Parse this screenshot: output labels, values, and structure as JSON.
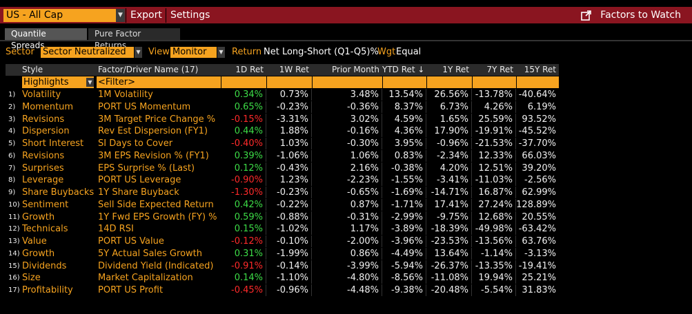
{
  "header": {
    "security": "US - All Cap",
    "export_label": "Export",
    "settings_label": "Settings",
    "factors_to_watch_label": "Factors to Watch"
  },
  "tabs": [
    {
      "label": "Quantile Spreads",
      "active": true
    },
    {
      "label": "Pure Factor Returns",
      "active": false
    }
  ],
  "filters": {
    "sector_label": "Sector",
    "sector_value": "Sector Neutralized",
    "view_label": "View",
    "view_value": "Monitor",
    "return_label": "Return",
    "return_value": "Net Long-Short (Q1-Q5)%",
    "wgt_label": "Wgt",
    "wgt_value": "Equal"
  },
  "table": {
    "headers": [
      "Style",
      "Factor/Driver Name (17)",
      "1D Ret",
      "1W Ret",
      "Prior Month",
      "YTD Ret ↓",
      "1Y Ret",
      "7Y Ret",
      "15Y Ret"
    ],
    "highlights_label": "Highlights",
    "filter_label": "<Filter>",
    "rows": [
      {
        "idx": "1)",
        "style": "Volatility",
        "name": "1M Volatility",
        "d1": "0.34%",
        "w1": "0.73%",
        "pm": "3.48%",
        "ytd": "13.54%",
        "y1": "26.56%",
        "y7": "-13.78%",
        "y15": "-40.64%"
      },
      {
        "idx": "2)",
        "style": "Momentum",
        "name": "PORT US Momentum",
        "d1": "0.65%",
        "w1": "-0.23%",
        "pm": "-0.36%",
        "ytd": "8.37%",
        "y1": "6.73%",
        "y7": "4.26%",
        "y15": "6.19%"
      },
      {
        "idx": "3)",
        "style": "Revisions",
        "name": "3M Target Price Change %",
        "d1": "-0.15%",
        "w1": "-3.31%",
        "pm": "3.02%",
        "ytd": "4.59%",
        "y1": "1.65%",
        "y7": "25.59%",
        "y15": "93.52%"
      },
      {
        "idx": "4)",
        "style": "Dispersion",
        "name": "Rev Est Dispersion (FY1)",
        "d1": "0.44%",
        "w1": "1.88%",
        "pm": "-0.16%",
        "ytd": "4.36%",
        "y1": "17.90%",
        "y7": "-19.91%",
        "y15": "-45.52%"
      },
      {
        "idx": "5)",
        "style": "Short Interest",
        "name": "SI Days to Cover",
        "d1": "-0.40%",
        "w1": "1.03%",
        "pm": "-0.30%",
        "ytd": "3.95%",
        "y1": "-0.96%",
        "y7": "-21.53%",
        "y15": "-37.70%"
      },
      {
        "idx": "6)",
        "style": "Revisions",
        "name": "3M EPS Revision % (FY1)",
        "d1": "0.39%",
        "w1": "-1.06%",
        "pm": "1.06%",
        "ytd": "0.83%",
        "y1": "-2.34%",
        "y7": "12.33%",
        "y15": "66.03%"
      },
      {
        "idx": "7)",
        "style": "Surprises",
        "name": "EPS Surprise % (Last)",
        "d1": "0.12%",
        "w1": "-0.43%",
        "pm": "2.16%",
        "ytd": "-0.38%",
        "y1": "4.20%",
        "y7": "12.51%",
        "y15": "39.20%"
      },
      {
        "idx": "8)",
        "style": "Leverage",
        "name": "PORT US Leverage",
        "d1": "-0.90%",
        "w1": "1.23%",
        "pm": "-2.23%",
        "ytd": "-1.55%",
        "y1": "-3.41%",
        "y7": "-11.03%",
        "y15": "-2.56%"
      },
      {
        "idx": "9)",
        "style": "Share Buybacks",
        "name": "1Y Share Buyback",
        "d1": "-1.30%",
        "w1": "-0.23%",
        "pm": "-0.65%",
        "ytd": "-1.69%",
        "y1": "-14.71%",
        "y7": "16.87%",
        "y15": "62.99%"
      },
      {
        "idx": "10)",
        "style": "Sentiment",
        "name": "Sell Side Expected Return",
        "d1": "0.42%",
        "w1": "-0.22%",
        "pm": "0.87%",
        "ytd": "-1.71%",
        "y1": "17.41%",
        "y7": "27.24%",
        "y15": "128.89%"
      },
      {
        "idx": "11)",
        "style": "Growth",
        "name": "1Y Fwd EPS Growth (FY) %",
        "d1": "0.59%",
        "w1": "-0.88%",
        "pm": "-0.31%",
        "ytd": "-2.99%",
        "y1": "-9.75%",
        "y7": "12.68%",
        "y15": "20.55%"
      },
      {
        "idx": "12)",
        "style": "Technicals",
        "name": "14D RSI",
        "d1": "0.15%",
        "w1": "-1.02%",
        "pm": "1.17%",
        "ytd": "-3.89%",
        "y1": "-18.39%",
        "y7": "-49.98%",
        "y15": "-63.42%"
      },
      {
        "idx": "13)",
        "style": "Value",
        "name": "PORT US Value",
        "d1": "-0.12%",
        "w1": "-0.10%",
        "pm": "-2.00%",
        "ytd": "-3.96%",
        "y1": "-23.53%",
        "y7": "-13.56%",
        "y15": "63.76%"
      },
      {
        "idx": "14)",
        "style": "Growth",
        "name": "5Y Actual Sales Growth",
        "d1": "0.31%",
        "w1": "-1.99%",
        "pm": "0.86%",
        "ytd": "-4.49%",
        "y1": "13.64%",
        "y7": "-1.14%",
        "y15": "-3.13%"
      },
      {
        "idx": "15)",
        "style": "Dividends",
        "name": "Dividend Yield (Indicated)",
        "d1": "-0.91%",
        "w1": "-0.14%",
        "pm": "-3.99%",
        "ytd": "-5.94%",
        "y1": "-26.37%",
        "y7": "-13.35%",
        "y15": "-19.41%"
      },
      {
        "idx": "16)",
        "style": "Size",
        "name": "Market Capitalization",
        "d1": "0.14%",
        "w1": "-1.10%",
        "pm": "-4.80%",
        "ytd": "-8.56%",
        "y1": "-11.08%",
        "y7": "19.94%",
        "y15": "25.21%"
      },
      {
        "idx": "17)",
        "style": "Profitability",
        "name": "PORT US Profit",
        "d1": "-0.45%",
        "w1": "-0.96%",
        "pm": "-4.48%",
        "ytd": "-9.38%",
        "y1": "-20.48%",
        "y7": "-5.54%",
        "y15": "31.83%"
      }
    ]
  },
  "colors": {
    "accent": "#f6a31f",
    "topbar": "#8a1520",
    "positive": "#3ddc47",
    "negative": "#ff2a2a"
  }
}
